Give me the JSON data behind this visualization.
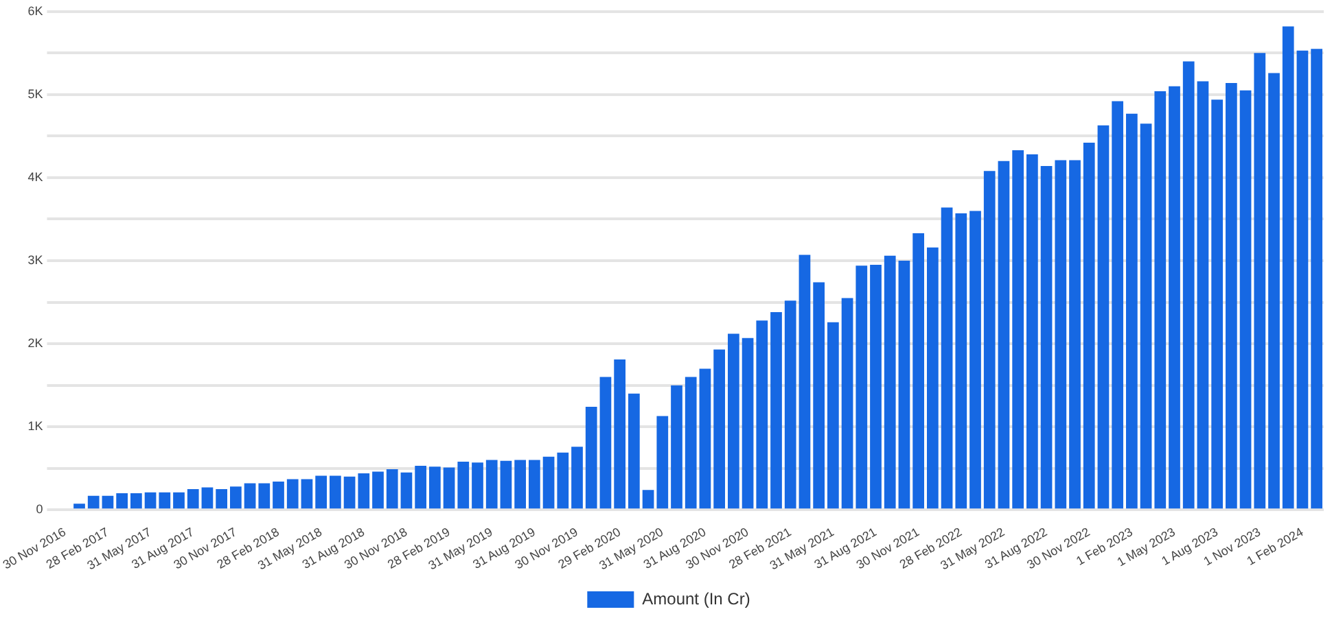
{
  "chart_data": {
    "type": "bar",
    "categories": [
      "30 Nov 2016",
      null,
      null,
      "28 Feb 2017",
      null,
      null,
      "31 May 2017",
      null,
      null,
      "31 Aug 2017",
      null,
      null,
      "30 Nov 2017",
      null,
      null,
      "28 Feb 2018",
      null,
      null,
      "31 May 2018",
      null,
      null,
      "31 Aug 2018",
      null,
      null,
      "30 Nov 2018",
      null,
      null,
      "28 Feb 2019",
      null,
      null,
      "31 May 2019",
      null,
      null,
      "31 Aug 2019",
      null,
      null,
      "30 Nov 2019",
      null,
      null,
      "29 Feb 2020",
      null,
      null,
      "31 May 2020",
      null,
      null,
      "31 Aug 2020",
      null,
      null,
      "30 Nov 2020",
      null,
      null,
      "28 Feb 2021",
      null,
      null,
      "31 May 2021",
      null,
      null,
      "31 Aug 2021",
      null,
      null,
      "30 Nov 2021",
      null,
      null,
      "28 Feb 2022",
      null,
      null,
      "31 May 2022",
      null,
      null,
      "31 Aug 2022",
      null,
      null,
      "30 Nov 2022",
      null,
      null,
      "1 Feb 2023",
      null,
      null,
      "1 May 2023",
      null,
      null,
      "1 Aug 2023",
      null,
      null,
      "1 Nov 2023",
      null,
      null,
      "1 Feb 2024",
      null
    ],
    "series": [
      {
        "name": "Amount (In Cr)",
        "color": "#1668e3",
        "values": [
          0,
          75,
          170,
          170,
          200,
          200,
          210,
          210,
          210,
          250,
          270,
          250,
          280,
          320,
          320,
          340,
          370,
          370,
          410,
          410,
          400,
          440,
          460,
          490,
          450,
          530,
          520,
          510,
          580,
          570,
          600,
          590,
          600,
          600,
          640,
          690,
          760,
          1240,
          1600,
          1810,
          1400,
          240,
          1130,
          1500,
          1600,
          1700,
          1930,
          2120,
          2070,
          2280,
          2380,
          2520,
          3070,
          2740,
          2260,
          2550,
          2940,
          2950,
          3060,
          3000,
          3330,
          3160,
          3640,
          3570,
          3600,
          4080,
          4200,
          4330,
          4280,
          4140,
          4210,
          4210,
          4420,
          4630,
          4920,
          4770,
          4650,
          5040,
          5100,
          5400,
          5160,
          4940,
          5140,
          5050,
          5500,
          5260,
          5820,
          5530,
          5550
        ]
      }
    ],
    "ylim": [
      0,
      6000
    ],
    "yticks": [
      0,
      {
        "value": 500,
        "label": null
      },
      {
        "value": 1000,
        "label": "1K"
      },
      {
        "value": 1500,
        "label": null
      },
      {
        "value": 2000,
        "label": "2K"
      },
      {
        "value": 2500,
        "label": null
      },
      {
        "value": 3000,
        "label": "3K"
      },
      {
        "value": 3500,
        "label": null
      },
      {
        "value": 4000,
        "label": "4K"
      },
      {
        "value": 4500,
        "label": null
      },
      {
        "value": 5000,
        "label": "5K"
      },
      {
        "value": 5500,
        "label": null
      },
      {
        "value": 6000,
        "label": "6K"
      }
    ],
    "grid": "y",
    "legend": "bottom"
  }
}
